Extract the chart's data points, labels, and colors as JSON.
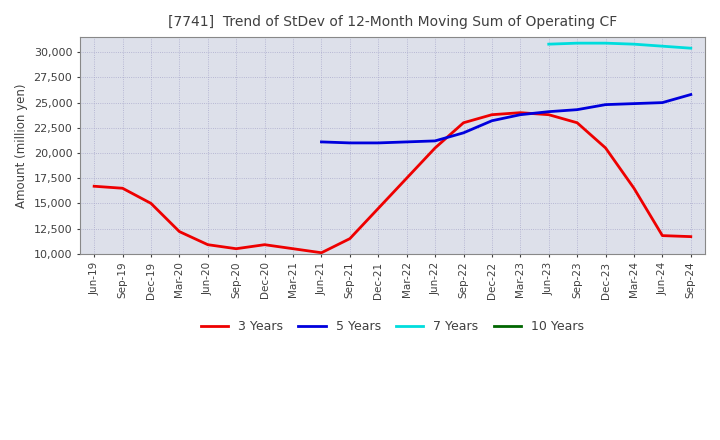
{
  "title": "[7741]  Trend of StDev of 12-Month Moving Sum of Operating CF",
  "ylabel": "Amount (million yen)",
  "ylim": [
    10000,
    31500
  ],
  "yticks": [
    10000,
    12500,
    15000,
    17500,
    20000,
    22500,
    25000,
    27500,
    30000
  ],
  "background_color": "#dde0ea",
  "grid_color": "#aaaacc",
  "title_color": "#404040",
  "legend_order": [
    "3 Years",
    "5 Years",
    "7 Years",
    "10 Years"
  ],
  "series": {
    "3 Years": {
      "color": "#ee0000",
      "x": [
        "Jun-19",
        "Sep-19",
        "Dec-19",
        "Mar-20",
        "Jun-20",
        "Sep-20",
        "Dec-20",
        "Mar-21",
        "Jun-21",
        "Sep-21",
        "Dec-21",
        "Mar-22",
        "Jun-22",
        "Sep-22",
        "Dec-22",
        "Mar-23",
        "Jun-23",
        "Sep-23",
        "Dec-23",
        "Mar-24",
        "Jun-24",
        "Sep-24"
      ],
      "y": [
        16700,
        16500,
        15000,
        12200,
        10900,
        10500,
        10900,
        10500,
        10100,
        11500,
        14500,
        17500,
        20500,
        23000,
        23800,
        24000,
        23800,
        23000,
        20500,
        16500,
        11800,
        11700
      ]
    },
    "5 Years": {
      "color": "#0000dd",
      "x": [
        "Jun-21",
        "Sep-21",
        "Dec-21",
        "Mar-22",
        "Jun-22",
        "Sep-22",
        "Dec-22",
        "Mar-23",
        "Jun-23",
        "Sep-23",
        "Dec-23",
        "Mar-24",
        "Jun-24",
        "Sep-24"
      ],
      "y": [
        21100,
        21000,
        21000,
        21100,
        21200,
        22000,
        23200,
        23800,
        24100,
        24300,
        24800,
        24900,
        25000,
        25800
      ]
    },
    "7 Years": {
      "color": "#00dddd",
      "x": [
        "Jun-23",
        "Sep-23",
        "Dec-23",
        "Mar-24",
        "Jun-24",
        "Sep-24"
      ],
      "y": [
        30800,
        30900,
        30900,
        30800,
        30600,
        30400
      ]
    },
    "10 Years": {
      "color": "#006600",
      "x": [],
      "y": []
    }
  },
  "x_labels": [
    "Jun-19",
    "Sep-19",
    "Dec-19",
    "Mar-20",
    "Jun-20",
    "Sep-20",
    "Dec-20",
    "Mar-21",
    "Jun-21",
    "Sep-21",
    "Dec-21",
    "Mar-22",
    "Jun-22",
    "Sep-22",
    "Dec-22",
    "Mar-23",
    "Jun-23",
    "Sep-23",
    "Dec-23",
    "Mar-24",
    "Jun-24",
    "Sep-24"
  ]
}
